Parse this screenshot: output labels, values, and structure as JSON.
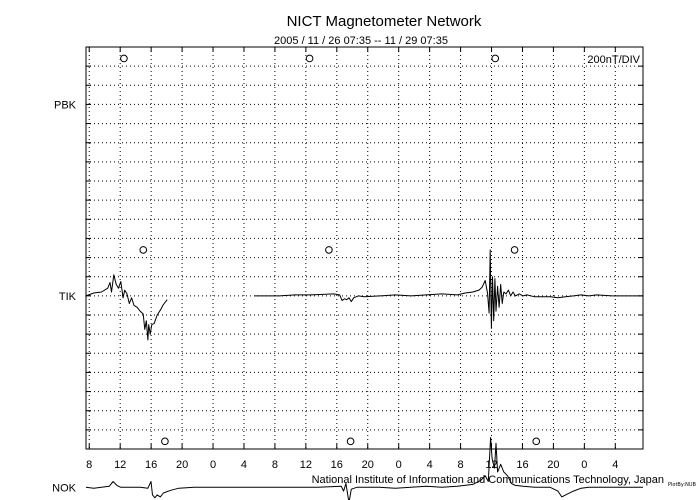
{
  "chart_data": {
    "type": "line",
    "title": "NICT Magnetometer Network",
    "subtitle": "2005 / 11 / 26   07:35 -- 11 / 29   07:35",
    "scale_label": "200nT/DIV",
    "footer": "National Institute of Information and Communications Technology, Japan",
    "footer_tag": "PlotBy:NUB",
    "x_unit": "hours since 2005-11-26 07:35",
    "xlim": [
      0,
      72
    ],
    "x_ticks": [
      {
        "label": "8",
        "t": 0.42
      },
      {
        "label": "12",
        "t": 4.42
      },
      {
        "label": "16",
        "t": 8.42
      },
      {
        "label": "20",
        "t": 12.42
      },
      {
        "label": "0",
        "t": 16.42
      },
      {
        "label": "4",
        "t": 20.42
      },
      {
        "label": "8",
        "t": 24.42
      },
      {
        "label": "12",
        "t": 28.42
      },
      {
        "label": "16",
        "t": 32.42
      },
      {
        "label": "20",
        "t": 36.42
      },
      {
        "label": "0",
        "t": 40.42
      },
      {
        "label": "4",
        "t": 44.42
      },
      {
        "label": "8",
        "t": 48.42
      },
      {
        "label": "12",
        "t": 52.42
      },
      {
        "label": "16",
        "t": 56.42
      },
      {
        "label": "20",
        "t": 60.42
      },
      {
        "label": "0",
        "t": 64.42
      },
      {
        "label": "4",
        "t": 68.42
      }
    ],
    "y_unit": "nT offset from station baseline (200 nT per division)",
    "ylim": [
      -800,
      1300
    ],
    "series": [
      {
        "name": "PBK",
        "baseline_nT": 1000,
        "points": [],
        "noon_markers_t": [
          4.9,
          28.9,
          52.9
        ]
      },
      {
        "name": "TIK",
        "baseline_nT": 0,
        "noon_markers_t": [
          7.4,
          31.4,
          55.4
        ],
        "points": [
          [
            0,
            0
          ],
          [
            1,
            15
          ],
          [
            2,
            20
          ],
          [
            2.8,
            40
          ],
          [
            3.1,
            70
          ],
          [
            3.3,
            20
          ],
          [
            3.6,
            110
          ],
          [
            3.9,
            60
          ],
          [
            4.2,
            40
          ],
          [
            4.5,
            75
          ],
          [
            4.8,
            -10
          ],
          [
            5.0,
            30
          ],
          [
            5.3,
            10
          ],
          [
            5.6,
            -40
          ],
          [
            5.9,
            -10
          ],
          [
            6.2,
            -50
          ],
          [
            6.6,
            -60
          ],
          [
            7.0,
            -80
          ],
          [
            7.4,
            -95
          ],
          [
            7.6,
            -175
          ],
          [
            7.8,
            -130
          ],
          [
            8.0,
            -230
          ],
          [
            8.1,
            -150
          ],
          [
            8.3,
            -200
          ],
          [
            8.5,
            -150
          ],
          [
            8.8,
            -145
          ],
          [
            9.2,
            -100
          ],
          [
            9.6,
            -75
          ],
          [
            10.0,
            -45
          ],
          [
            10.5,
            -20
          ],
          [
            null,
            null
          ],
          [
            21.8,
            0
          ],
          [
            23,
            0
          ],
          [
            25,
            0
          ],
          [
            27,
            5
          ],
          [
            29,
            5
          ],
          [
            31,
            8
          ],
          [
            32,
            10
          ],
          [
            32.8,
            5
          ],
          [
            33.1,
            -25
          ],
          [
            33.4,
            -15
          ],
          [
            33.7,
            -20
          ],
          [
            34.0,
            -10
          ],
          [
            34.3,
            -30
          ],
          [
            34.6,
            -10
          ],
          [
            35.2,
            0
          ],
          [
            36,
            -5
          ],
          [
            38,
            0
          ],
          [
            40,
            5
          ],
          [
            42,
            0
          ],
          [
            44,
            5
          ],
          [
            46,
            10
          ],
          [
            48,
            5
          ],
          [
            49,
            15
          ],
          [
            50,
            20
          ],
          [
            50.8,
            30
          ],
          [
            51.2,
            45
          ],
          [
            51.6,
            80
          ],
          [
            51.9,
            15
          ],
          [
            52.1,
            -90
          ],
          [
            52.25,
            240
          ],
          [
            52.4,
            -170
          ],
          [
            52.55,
            100
          ],
          [
            52.7,
            -130
          ],
          [
            52.85,
            90
          ],
          [
            53.0,
            -80
          ],
          [
            53.2,
            50
          ],
          [
            53.4,
            -60
          ],
          [
            53.6,
            60
          ],
          [
            53.8,
            -40
          ],
          [
            54.0,
            20
          ],
          [
            54.3,
            10
          ],
          [
            54.6,
            30
          ],
          [
            54.9,
            0
          ],
          [
            55.2,
            20
          ],
          [
            55.5,
            0
          ],
          [
            56.0,
            10
          ],
          [
            56.5,
            0
          ],
          [
            57.0,
            5
          ],
          [
            58.0,
            -5
          ],
          [
            59.0,
            -5
          ],
          [
            60.0,
            -5
          ],
          [
            61.0,
            -10
          ],
          [
            62.0,
            -5
          ],
          [
            63.0,
            0
          ],
          [
            64.0,
            5
          ],
          [
            65.0,
            0
          ],
          [
            66.0,
            5
          ],
          [
            68.0,
            0
          ],
          [
            70.0,
            0
          ],
          [
            72.0,
            0
          ]
        ]
      },
      {
        "name": "NOK",
        "baseline_nT": -1000,
        "noon_markers_t": [
          10.2,
          34.2,
          58.2
        ],
        "points": [
          [
            0,
            0
          ],
          [
            1,
            -5
          ],
          [
            2,
            0
          ],
          [
            3,
            5
          ],
          [
            3.5,
            30
          ],
          [
            4.0,
            10
          ],
          [
            4.5,
            0
          ],
          [
            5.5,
            0
          ],
          [
            7.0,
            0
          ],
          [
            8.0,
            -5
          ],
          [
            8.4,
            30
          ],
          [
            8.6,
            -40
          ],
          [
            8.9,
            -55
          ],
          [
            9.2,
            -40
          ],
          [
            9.6,
            -50
          ],
          [
            10,
            -30
          ],
          [
            11,
            -15
          ],
          [
            12,
            -5
          ],
          [
            14,
            0
          ],
          [
            18,
            0
          ],
          [
            22,
            0
          ],
          [
            26,
            0
          ],
          [
            30,
            0
          ],
          [
            33.0,
            5
          ],
          [
            33.3,
            -20
          ],
          [
            33.6,
            20
          ],
          [
            34.0,
            -80
          ],
          [
            34.3,
            -10
          ],
          [
            35,
            0
          ],
          [
            38,
            0
          ],
          [
            40,
            -5
          ],
          [
            42,
            0
          ],
          [
            44,
            5
          ],
          [
            46,
            0
          ],
          [
            48,
            5
          ],
          [
            50,
            15
          ],
          [
            51,
            35
          ],
          [
            51.6,
            60
          ],
          [
            52.0,
            30
          ],
          [
            52.3,
            260
          ],
          [
            52.5,
            150
          ],
          [
            52.8,
            100
          ],
          [
            53.0,
            230
          ],
          [
            53.2,
            80
          ],
          [
            53.6,
            120
          ],
          [
            54.0,
            80
          ],
          [
            54.5,
            60
          ],
          [
            55.0,
            20
          ],
          [
            55.5,
            10
          ],
          [
            56.5,
            5
          ],
          [
            58,
            0
          ],
          [
            60,
            0
          ],
          [
            61,
            -20
          ],
          [
            61.5,
            -50
          ],
          [
            62,
            -40
          ],
          [
            63,
            -20
          ],
          [
            64,
            -5
          ],
          [
            65,
            0
          ],
          [
            66,
            0
          ],
          [
            68,
            0
          ],
          [
            70,
            0
          ],
          [
            72,
            0
          ]
        ]
      }
    ]
  }
}
